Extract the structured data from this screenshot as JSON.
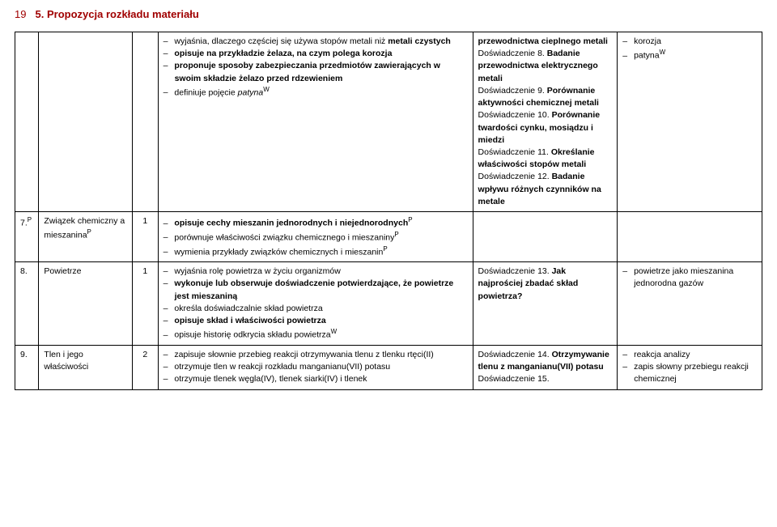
{
  "page_number": "19",
  "header_title": "5. Propozycja rozkładu materiału",
  "rows": [
    {
      "num": "",
      "topic": "",
      "hours": "",
      "col4_items": [
        {
          "pre": "wyjaśnia, dlaczego częściej się używa stopów metali niż ",
          "b": "metali czystych",
          "post": ""
        },
        {
          "pre": "",
          "b": "opisuje na przykładzie żelaza, na czym polega korozja",
          "post": ""
        },
        {
          "pre": "",
          "b": "proponuje sposoby zabezpieczania przedmiotów zawierających w swoim składzie żelazo przed rdzewieniem",
          "post": ""
        },
        {
          "pre": "definiuje pojęcie ",
          "i": "patyna",
          "sup": "W",
          "post": ""
        }
      ],
      "col5_html": "<span class='b'>przewodnictwa cieplnego metali</span><br>Doświadczenie 8. <span class='b'>Badanie przewodnictwa elektrycznego metali</span><br>Doświadczenie 9. <span class='b'>Porównanie aktywności chemicznej metali</span><br>Doświadczenie 10. <span class='b'>Porównanie twardości cynku, mosiądzu i miedzi</span><br>Doświadczenie 11. <span class='b'>Określanie właściwości stopów metali</span><br>Doświadczenie 12. <span class='b'>Badanie wpływu różnych czynników na metale</span>",
      "col6_items": [
        {
          "text": "korozja"
        },
        {
          "text": "patyna",
          "sup": "W"
        }
      ]
    },
    {
      "num": "7.",
      "num_sup": "P",
      "topic": "Związek chemiczny a mieszanina",
      "topic_sup": "P",
      "hours": "1",
      "col4_items": [
        {
          "pre": "",
          "b": "opisuje cechy mieszanin jednorodnych i niejednorodnych",
          "sup": "P",
          "post": ""
        },
        {
          "pre": "porównuje właściwości związku chemicznego i mieszaniny",
          "sup": "P",
          "post": ""
        },
        {
          "pre": "wymienia przykłady związków chemicznych i mieszanin",
          "sup": "P",
          "post": ""
        }
      ],
      "col5_html": "",
      "col6_items": []
    },
    {
      "num": "8.",
      "topic": "Powietrze",
      "hours": "1",
      "col4_items": [
        {
          "pre": "wyjaśnia rolę powietrza w życiu organizmów",
          "post": ""
        },
        {
          "pre": "",
          "b": "wykonuje lub obserwuje doświadczenie potwierdzające, że powietrze jest mieszaniną",
          "post": ""
        },
        {
          "pre": "określa doświadczalnie skład powietrza",
          "post": ""
        },
        {
          "pre": "",
          "b": "opisuje skład i właściwości powietrza",
          "post": ""
        },
        {
          "pre": "opisuje historię odkrycia składu powietrza",
          "sup": "W",
          "post": ""
        }
      ],
      "col5_html": "Doświadczenie 13. <span class='b'>Jak najprościej zbadać skład powietrza?</span>",
      "col6_items": [
        {
          "text": "powietrze jako mieszanina jednorodna gazów"
        }
      ]
    },
    {
      "num": "9.",
      "topic": "Tlen i jego właściwości",
      "hours": "2",
      "col4_items": [
        {
          "pre": "zapisuje słownie przebieg reakcji otrzymywania tlenu z tlenku rtęci(II)",
          "post": ""
        },
        {
          "pre": "otrzymuje tlen w reakcji rozkładu manganianu(VII) potasu",
          "post": ""
        },
        {
          "pre": "otrzymuje tlenek węgla(IV), tlenek siarki(IV) i tlenek",
          "post": ""
        }
      ],
      "col5_html": "Doświadczenie 14. <span class='b'>Otrzymywanie tlenu z manganianu(VII) potasu</span><br>Doświadczenie 15.",
      "col6_items": [
        {
          "text": "reakcja analizy"
        },
        {
          "text": "zapis słowny przebiegu reakcji chemicznej"
        }
      ]
    }
  ]
}
